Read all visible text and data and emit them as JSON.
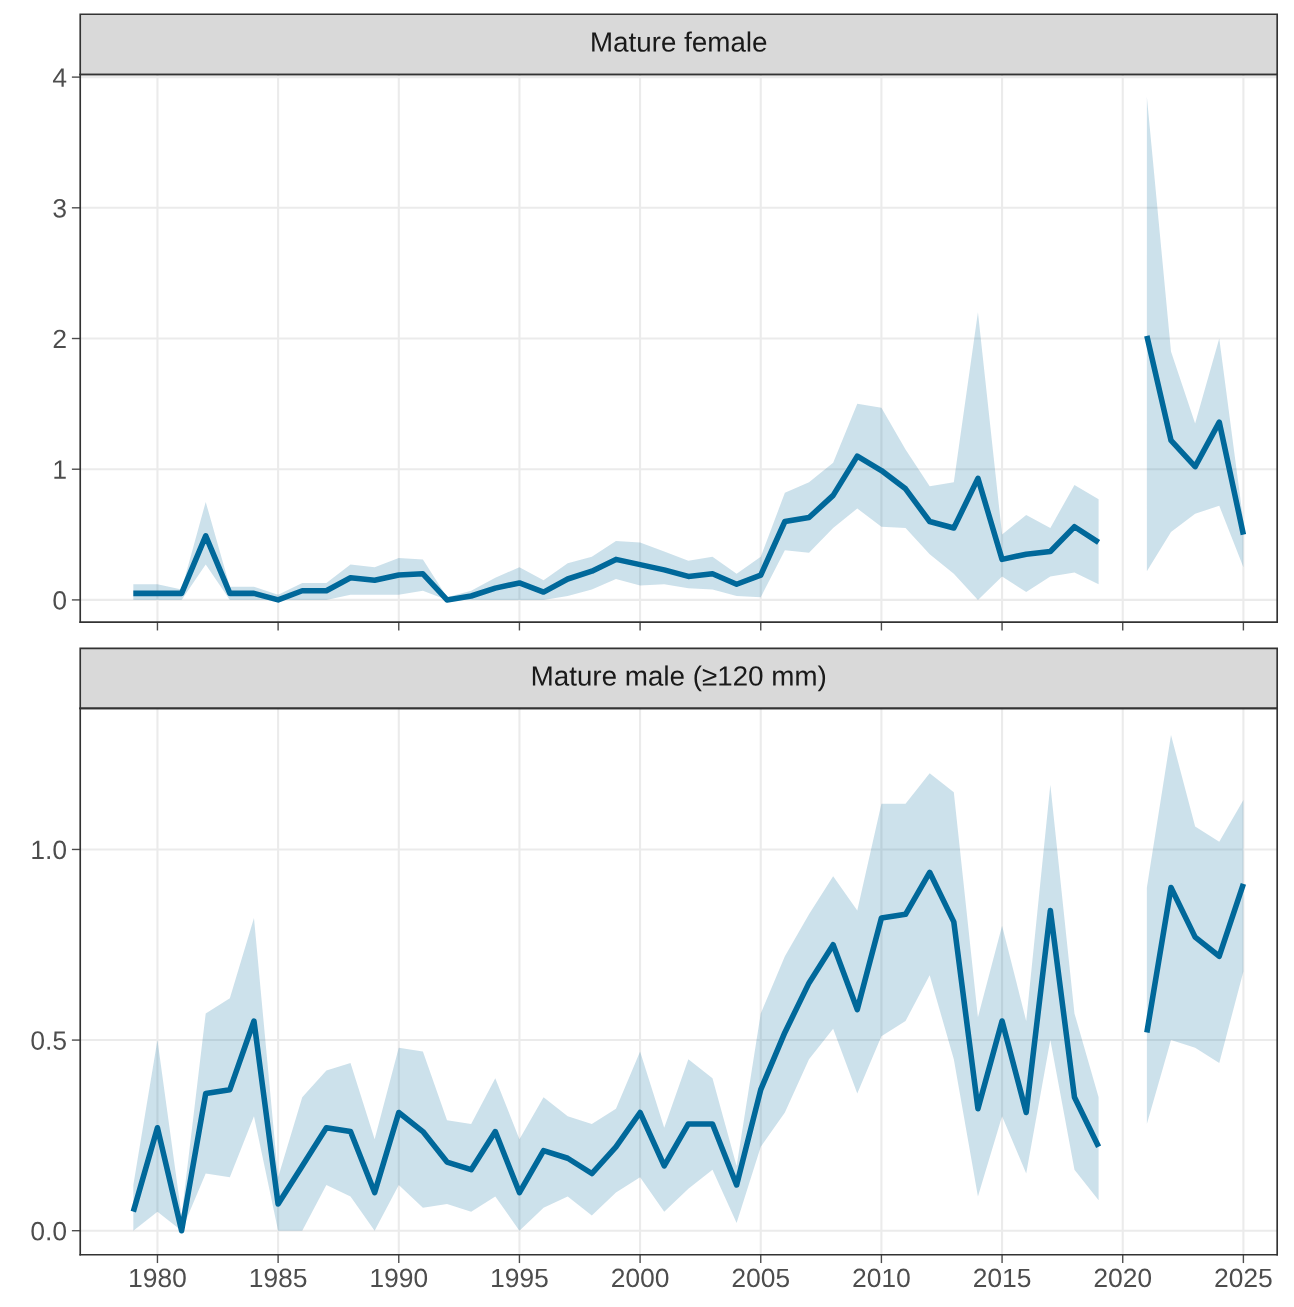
{
  "chart_data": [
    {
      "type": "line",
      "title": "Mature female",
      "x": [
        1979,
        1980,
        1981,
        1982,
        1983,
        1984,
        1985,
        1986,
        1987,
        1988,
        1989,
        1990,
        1991,
        1992,
        1993,
        1994,
        1995,
        1996,
        1997,
        1998,
        1999,
        2000,
        2001,
        2002,
        2003,
        2004,
        2005,
        2006,
        2007,
        2008,
        2009,
        2010,
        2011,
        2012,
        2013,
        2014,
        2015,
        2016,
        2017,
        2018,
        2019,
        2020,
        2021,
        2022,
        2023,
        2024,
        2025
      ],
      "series": [
        {
          "color": "#00689a",
          "values": [
            0.05,
            0.05,
            0.05,
            0.49,
            0.05,
            0.05,
            0.0,
            0.07,
            0.07,
            0.17,
            0.15,
            0.19,
            0.2,
            0.0,
            0.03,
            0.09,
            0.13,
            0.06,
            0.16,
            0.22,
            0.31,
            0.27,
            0.23,
            0.18,
            0.2,
            0.12,
            0.19,
            0.6,
            0.63,
            0.8,
            1.1,
            0.99,
            0.85,
            0.6,
            0.55,
            0.93,
            0.31,
            0.35,
            0.37,
            0.56,
            0.44,
            null,
            2.02,
            1.22,
            1.02,
            1.36,
            0.5
          ],
          "lower": [
            0.0,
            0.0,
            0.0,
            0.27,
            0.0,
            0.0,
            0.0,
            0.0,
            0.0,
            0.04,
            0.04,
            0.04,
            0.07,
            0.0,
            0.0,
            0.0,
            0.0,
            0.0,
            0.03,
            0.08,
            0.16,
            0.11,
            0.12,
            0.09,
            0.08,
            0.03,
            0.02,
            0.38,
            0.36,
            0.55,
            0.7,
            0.56,
            0.55,
            0.35,
            0.2,
            0.0,
            0.18,
            0.06,
            0.18,
            0.21,
            0.12,
            null,
            0.22,
            0.52,
            0.66,
            0.72,
            0.25
          ],
          "upper": [
            0.12,
            0.12,
            0.08,
            0.75,
            0.1,
            0.1,
            0.04,
            0.13,
            0.13,
            0.27,
            0.25,
            0.32,
            0.31,
            0.02,
            0.07,
            0.17,
            0.25,
            0.15,
            0.28,
            0.33,
            0.45,
            0.44,
            0.37,
            0.3,
            0.33,
            0.2,
            0.33,
            0.82,
            0.9,
            1.05,
            1.5,
            1.47,
            1.15,
            0.87,
            0.9,
            2.2,
            0.5,
            0.65,
            0.55,
            0.88,
            0.77,
            null,
            3.85,
            1.9,
            1.35,
            2.0,
            0.6
          ]
        }
      ],
      "xlim": [
        1976.8,
        2026.4
      ],
      "xticks": [
        1980,
        1985,
        1990,
        1995,
        2000,
        2005,
        2010,
        2015,
        2020,
        2025
      ],
      "ylim": [
        -0.17,
        4.02
      ],
      "yticks": [
        0,
        1,
        2,
        3,
        4
      ],
      "tick_labels": "y",
      "grid": true,
      "line_style": "solid"
    },
    {
      "type": "line",
      "title": "Mature male (≥120 mm)",
      "x": [
        1979,
        1980,
        1981,
        1982,
        1983,
        1984,
        1985,
        1986,
        1987,
        1988,
        1989,
        1990,
        1991,
        1992,
        1993,
        1994,
        1995,
        1996,
        1997,
        1998,
        1999,
        2000,
        2001,
        2002,
        2003,
        2004,
        2005,
        2006,
        2007,
        2008,
        2009,
        2010,
        2011,
        2012,
        2013,
        2014,
        2015,
        2016,
        2017,
        2018,
        2019,
        2020,
        2021,
        2022,
        2023,
        2024,
        2025
      ],
      "series": [
        {
          "color": "#00689a",
          "values": [
            0.05,
            0.27,
            0.0,
            0.36,
            0.37,
            0.55,
            0.07,
            0.17,
            0.27,
            0.26,
            0.1,
            0.31,
            0.26,
            0.18,
            0.16,
            0.26,
            0.1,
            0.21,
            0.19,
            0.15,
            0.22,
            0.31,
            0.17,
            0.28,
            0.28,
            0.12,
            0.37,
            0.52,
            0.65,
            0.75,
            0.58,
            0.82,
            0.83,
            0.94,
            0.81,
            0.32,
            0.55,
            0.31,
            0.84,
            0.35,
            0.22,
            null,
            0.52,
            0.9,
            0.77,
            0.72,
            0.91
          ],
          "lower": [
            0.0,
            0.05,
            0.0,
            0.15,
            0.14,
            0.3,
            0.0,
            0.0,
            0.12,
            0.09,
            0.0,
            0.12,
            0.06,
            0.07,
            0.05,
            0.09,
            0.0,
            0.06,
            0.09,
            0.04,
            0.1,
            0.14,
            0.05,
            0.11,
            0.16,
            0.02,
            0.22,
            0.31,
            0.45,
            0.53,
            0.36,
            0.51,
            0.55,
            0.67,
            0.45,
            0.09,
            0.3,
            0.15,
            0.5,
            0.16,
            0.08,
            null,
            0.28,
            0.5,
            0.48,
            0.44,
            0.68
          ],
          "upper": [
            0.12,
            0.5,
            0.04,
            0.57,
            0.61,
            0.82,
            0.14,
            0.35,
            0.42,
            0.44,
            0.24,
            0.48,
            0.47,
            0.29,
            0.28,
            0.4,
            0.24,
            0.35,
            0.3,
            0.28,
            0.32,
            0.47,
            0.27,
            0.45,
            0.4,
            0.17,
            0.57,
            0.72,
            0.83,
            0.93,
            0.84,
            1.12,
            1.12,
            1.2,
            1.15,
            0.56,
            0.8,
            0.55,
            1.17,
            0.57,
            0.35,
            null,
            0.9,
            1.3,
            1.06,
            1.02,
            1.13
          ]
        }
      ],
      "xlim": [
        1976.8,
        2026.4
      ],
      "xticks": [
        1980,
        1985,
        1990,
        1995,
        2000,
        2005,
        2010,
        2015,
        2020,
        2025
      ],
      "ylim": [
        -0.063,
        1.37
      ],
      "yticks": [
        {
          "value": 0,
          "label": "0.0"
        },
        {
          "value": 0.5,
          "label": "0.5"
        },
        {
          "value": 1,
          "label": "1.0"
        }
      ],
      "grid": true,
      "line_style": "solid"
    }
  ]
}
